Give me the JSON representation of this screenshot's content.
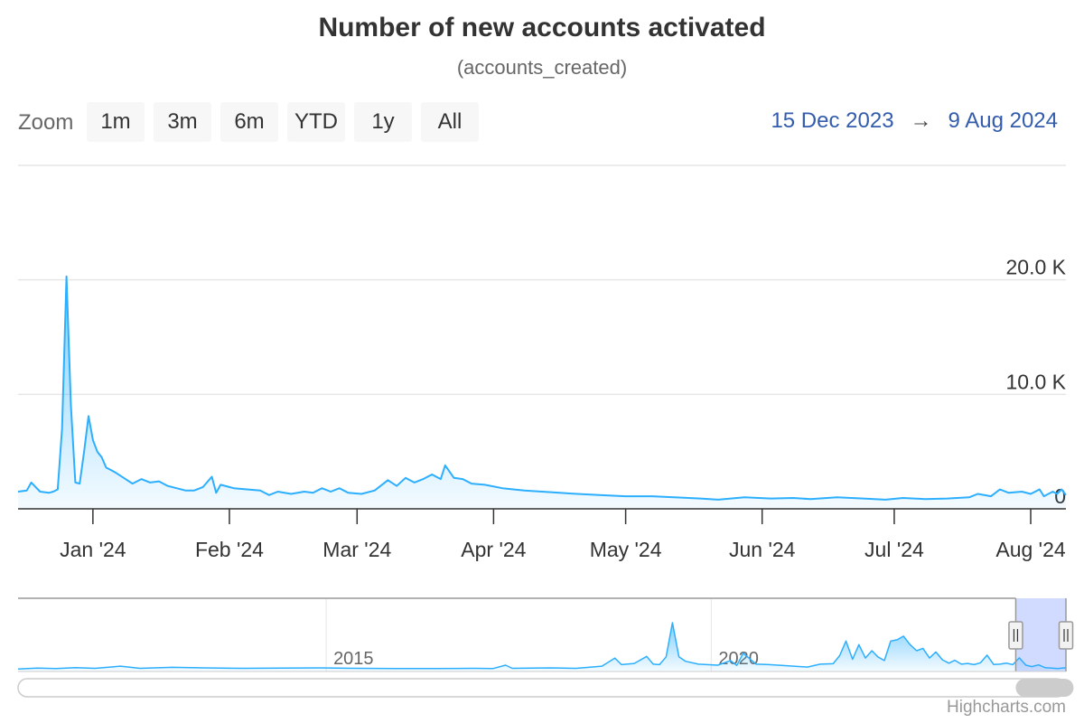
{
  "title": "Number of new accounts activated",
  "subtitle": "(accounts_created)",
  "zoom": {
    "label": "Zoom",
    "buttons": [
      "1m",
      "3m",
      "6m",
      "YTD",
      "1y",
      "All"
    ]
  },
  "range": {
    "from": "15 Dec 2023",
    "arrow": "→",
    "to": "9 Aug 2024"
  },
  "credits": "Highcharts.com",
  "colors": {
    "series": "#2caffe",
    "range_text": "#335cad",
    "navigator_mask": "#ccd6ff"
  },
  "chart_data": {
    "type": "area",
    "series": [
      {
        "points": [
          [
            "2023-12-15",
            1500
          ],
          [
            "2023-12-17",
            1600
          ],
          [
            "2023-12-18",
            2300
          ],
          [
            "2023-12-20",
            1500
          ],
          [
            "2023-12-22",
            1400
          ],
          [
            "2023-12-23",
            1500
          ],
          [
            "2023-12-24",
            1700
          ],
          [
            "2023-12-25",
            7000
          ],
          [
            "2023-12-26",
            20300
          ],
          [
            "2023-12-27",
            9000
          ],
          [
            "2023-12-28",
            2300
          ],
          [
            "2023-12-29",
            2200
          ],
          [
            "2023-12-30",
            5000
          ],
          [
            "2023-12-31",
            8100
          ],
          [
            "2024-01-01",
            6000
          ],
          [
            "2024-01-02",
            5000
          ],
          [
            "2024-01-03",
            4500
          ],
          [
            "2024-01-04",
            3600
          ],
          [
            "2024-01-05",
            3400
          ],
          [
            "2024-01-06",
            3200
          ],
          [
            "2024-01-08",
            2700
          ],
          [
            "2024-01-10",
            2200
          ],
          [
            "2024-01-12",
            2600
          ],
          [
            "2024-01-14",
            2300
          ],
          [
            "2024-01-16",
            2400
          ],
          [
            "2024-01-18",
            2000
          ],
          [
            "2024-01-20",
            1800
          ],
          [
            "2024-01-22",
            1600
          ],
          [
            "2024-01-24",
            1600
          ],
          [
            "2024-01-26",
            1900
          ],
          [
            "2024-01-28",
            2800
          ],
          [
            "2024-01-29",
            1400
          ],
          [
            "2024-01-30",
            2100
          ],
          [
            "2024-02-02",
            1800
          ],
          [
            "2024-02-05",
            1700
          ],
          [
            "2024-02-08",
            1600
          ],
          [
            "2024-02-10",
            1200
          ],
          [
            "2024-02-12",
            1500
          ],
          [
            "2024-02-15",
            1300
          ],
          [
            "2024-02-18",
            1500
          ],
          [
            "2024-02-20",
            1400
          ],
          [
            "2024-02-22",
            1800
          ],
          [
            "2024-02-24",
            1500
          ],
          [
            "2024-02-26",
            1800
          ],
          [
            "2024-02-28",
            1400
          ],
          [
            "2024-03-02",
            1300
          ],
          [
            "2024-03-05",
            1600
          ],
          [
            "2024-03-08",
            2500
          ],
          [
            "2024-03-10",
            2000
          ],
          [
            "2024-03-12",
            2700
          ],
          [
            "2024-03-14",
            2300
          ],
          [
            "2024-03-16",
            2600
          ],
          [
            "2024-03-18",
            3000
          ],
          [
            "2024-03-20",
            2600
          ],
          [
            "2024-03-21",
            3800
          ],
          [
            "2024-03-23",
            2700
          ],
          [
            "2024-03-25",
            2600
          ],
          [
            "2024-03-27",
            2200
          ],
          [
            "2024-03-30",
            2100
          ],
          [
            "2024-04-03",
            1800
          ],
          [
            "2024-04-08",
            1600
          ],
          [
            "2024-04-12",
            1500
          ],
          [
            "2024-04-16",
            1400
          ],
          [
            "2024-04-20",
            1300
          ],
          [
            "2024-04-25",
            1200
          ],
          [
            "2024-05-01",
            1100
          ],
          [
            "2024-05-07",
            1100
          ],
          [
            "2024-05-12",
            1000
          ],
          [
            "2024-05-18",
            900
          ],
          [
            "2024-05-22",
            800
          ],
          [
            "2024-05-28",
            1000
          ],
          [
            "2024-06-03",
            900
          ],
          [
            "2024-06-08",
            950
          ],
          [
            "2024-06-12",
            850
          ],
          [
            "2024-06-18",
            1000
          ],
          [
            "2024-06-24",
            900
          ],
          [
            "2024-06-29",
            800
          ],
          [
            "2024-07-03",
            950
          ],
          [
            "2024-07-08",
            850
          ],
          [
            "2024-07-13",
            900
          ],
          [
            "2024-07-18",
            1000
          ],
          [
            "2024-07-20",
            1300
          ],
          [
            "2024-07-23",
            1100
          ],
          [
            "2024-07-25",
            1700
          ],
          [
            "2024-07-27",
            1400
          ],
          [
            "2024-07-30",
            1500
          ],
          [
            "2024-08-01",
            1300
          ],
          [
            "2024-08-03",
            1700
          ],
          [
            "2024-08-04",
            1100
          ],
          [
            "2024-08-06",
            1500
          ],
          [
            "2024-08-07",
            1300
          ],
          [
            "2024-08-08",
            1700
          ],
          [
            "2024-08-09",
            1200
          ]
        ]
      }
    ],
    "y_ticks": [
      0,
      10000,
      20000
    ],
    "y_tick_labels": [
      "0",
      "10.0 K",
      "20.0 K"
    ],
    "ylim": [
      0,
      30000
    ],
    "y_axis_position": "right",
    "xlim": [
      "2023-12-15",
      "2024-08-09"
    ],
    "x_ticks": [
      {
        "date": "2024-01-01",
        "label": "Jan '24"
      },
      {
        "date": "2024-02-01",
        "label": "Feb '24"
      },
      {
        "date": "2024-03-01",
        "label": "Mar '24"
      },
      {
        "date": "2024-04-01",
        "label": "Apr '24"
      },
      {
        "date": "2024-05-01",
        "label": "May '24"
      },
      {
        "date": "2024-06-01",
        "label": "Jun '24"
      },
      {
        "date": "2024-07-01",
        "label": "Jul '24"
      },
      {
        "date": "2024-08-01",
        "label": "Aug '24"
      }
    ],
    "grid": true,
    "navigator": {
      "xlim": [
        "2011-01-01",
        "2024-08-09"
      ],
      "ylim": [
        0,
        30000
      ],
      "ticks": [
        {
          "date": "2015-01-01",
          "label": "2015"
        },
        {
          "date": "2020-01-01",
          "label": "2020"
        }
      ],
      "selected": [
        "2023-12-15",
        "2024-08-09"
      ],
      "points": [
        [
          "2011-01-01",
          1000
        ],
        [
          "2011-04-01",
          1400
        ],
        [
          "2011-07-01",
          1200
        ],
        [
          "2011-10-01",
          1600
        ],
        [
          "2012-01-01",
          1300
        ],
        [
          "2012-05-01",
          2200
        ],
        [
          "2012-08-01",
          1300
        ],
        [
          "2013-01-01",
          1700
        ],
        [
          "2013-06-01",
          1500
        ],
        [
          "2013-12-01",
          1300
        ],
        [
          "2014-06-01",
          1400
        ],
        [
          "2014-12-01",
          1500
        ],
        [
          "2015-06-01",
          1300
        ],
        [
          "2015-12-01",
          1200
        ],
        [
          "2016-06-01",
          1200
        ],
        [
          "2016-12-01",
          1300
        ],
        [
          "2017-03-01",
          1200
        ],
        [
          "2017-05-01",
          2600
        ],
        [
          "2017-06-01",
          1300
        ],
        [
          "2017-12-01",
          1500
        ],
        [
          "2018-04-01",
          1300
        ],
        [
          "2018-08-01",
          2200
        ],
        [
          "2018-10-01",
          5500
        ],
        [
          "2018-11-01",
          2800
        ],
        [
          "2019-01-01",
          3300
        ],
        [
          "2019-03-01",
          6200
        ],
        [
          "2019-04-01",
          3000
        ],
        [
          "2019-05-01",
          2800
        ],
        [
          "2019-06-01",
          6000
        ],
        [
          "2019-07-01",
          20000
        ],
        [
          "2019-08-01",
          6000
        ],
        [
          "2019-09-01",
          4200
        ],
        [
          "2019-11-01",
          3000
        ],
        [
          "2020-02-01",
          2600
        ],
        [
          "2020-04-01",
          4500
        ],
        [
          "2020-05-01",
          2500
        ],
        [
          "2020-06-01",
          7500
        ],
        [
          "2020-08-01",
          3000
        ],
        [
          "2020-10-01",
          2800
        ],
        [
          "2021-01-01",
          2300
        ],
        [
          "2021-04-01",
          1800
        ],
        [
          "2021-06-01",
          3000
        ],
        [
          "2021-08-01",
          3200
        ],
        [
          "2021-09-01",
          6500
        ],
        [
          "2021-10-01",
          12500
        ],
        [
          "2021-11-01",
          5000
        ],
        [
          "2021-12-01",
          11000
        ],
        [
          "2022-01-01",
          5500
        ],
        [
          "2022-02-01",
          8500
        ],
        [
          "2022-03-01",
          6000
        ],
        [
          "2022-04-01",
          4500
        ],
        [
          "2022-05-01",
          12500
        ],
        [
          "2022-06-01",
          13000
        ],
        [
          "2022-07-01",
          14500
        ],
        [
          "2022-08-01",
          11000
        ],
        [
          "2022-09-01",
          8500
        ],
        [
          "2022-10-01",
          9500
        ],
        [
          "2022-11-01",
          5500
        ],
        [
          "2022-12-01",
          8000
        ],
        [
          "2023-01-01",
          4800
        ],
        [
          "2023-02-01",
          3400
        ],
        [
          "2023-03-01",
          4600
        ],
        [
          "2023-04-01",
          3000
        ],
        [
          "2023-05-01",
          3300
        ],
        [
          "2023-06-01",
          2800
        ],
        [
          "2023-07-01",
          3600
        ],
        [
          "2023-08-01",
          6700
        ],
        [
          "2023-09-01",
          2900
        ],
        [
          "2023-10-01",
          3000
        ],
        [
          "2023-11-01",
          3400
        ],
        [
          "2023-12-01",
          2800
        ],
        [
          "2024-01-01",
          5600
        ],
        [
          "2024-02-01",
          2600
        ],
        [
          "2024-03-01",
          2000
        ],
        [
          "2024-04-01",
          2700
        ],
        [
          "2024-05-01",
          1600
        ],
        [
          "2024-06-01",
          1400
        ],
        [
          "2024-07-01",
          1200
        ],
        [
          "2024-08-01",
          1500
        ],
        [
          "2024-08-09",
          1400
        ]
      ]
    }
  }
}
